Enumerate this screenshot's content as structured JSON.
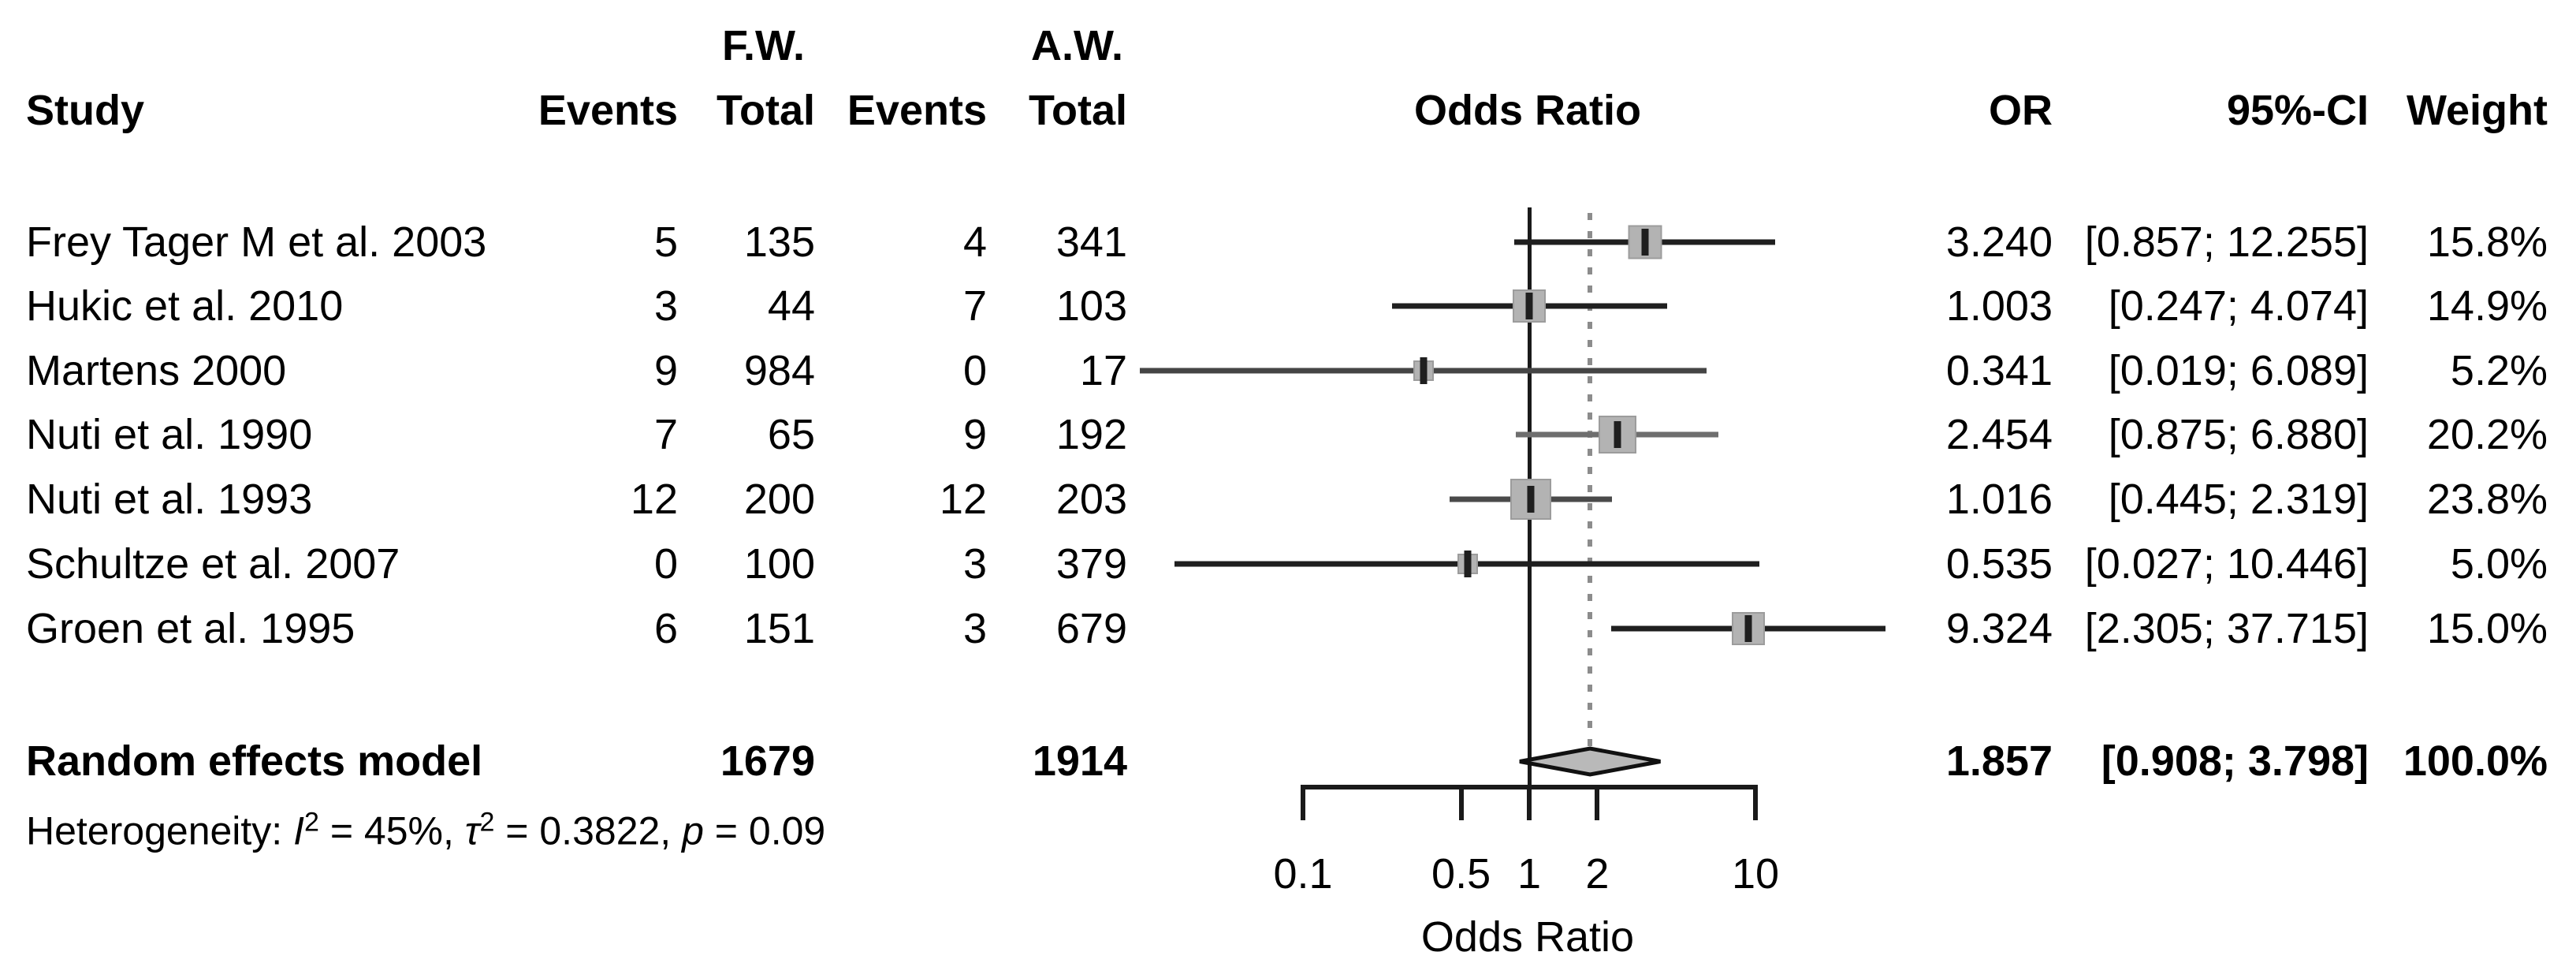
{
  "header": {
    "study": "Study",
    "fw_group": "F.W.",
    "aw_group": "A.W.",
    "events1": "Events",
    "total1": "Total",
    "events2": "Events",
    "total2": "Total",
    "plot_title": "Odds Ratio",
    "or": "OR",
    "ci": "95%-CI",
    "weight": "Weight"
  },
  "colors": {
    "ci_line": "#1a1a1a",
    "square_fill": "#b3b3b3",
    "square_edge": "#9c9c9c",
    "marker": "#1f1f1f",
    "diamond_fill": "#b9b9b9",
    "diamond_edge": "#111111",
    "dotted_line": "#8c8c8c",
    "axis": "#1a1a1a",
    "ref_line": "#1a1a1a"
  },
  "heterogeneity": {
    "prefix": "Heterogeneity: ",
    "i_symbol": "I",
    "i_exp": "2",
    "i_eq": " = 45%, ",
    "tau_symbol": "τ",
    "tau_exp": "2",
    "tau_eq": " = 0.3822, ",
    "p_symbol": "p",
    "p_eq": " = 0.09"
  },
  "chart_data": {
    "type": "forest",
    "effect_measure": "Odds Ratio",
    "x_scale": "log10",
    "axis": {
      "label": "Odds Ratio",
      "ticks": [
        {
          "v": 0.1,
          "label": "0.1"
        },
        {
          "v": 0.5,
          "label": "0.5"
        },
        {
          "v": 1,
          "label": "1"
        },
        {
          "v": 2,
          "label": "2"
        },
        {
          "v": 10,
          "label": "10"
        }
      ],
      "ref_line": 1,
      "dashed_line": 1.857
    },
    "studies": [
      {
        "study": "Frey Tager M et al. 2003",
        "fw_events": "5",
        "fw_total": "135",
        "aw_events": "4",
        "aw_total": "341",
        "or": 3.24,
        "ci_lower": 0.857,
        "ci_upper": 12.255,
        "weight": 15.8,
        "or_text": "3.240",
        "ci_text": "[0.857; 12.255]",
        "weight_text": "15.8%",
        "line_color": "#1f1f1f"
      },
      {
        "study": "Hukic et al. 2010",
        "fw_events": "3",
        "fw_total": "44",
        "aw_events": "7",
        "aw_total": "103",
        "or": 1.003,
        "ci_lower": 0.247,
        "ci_upper": 4.074,
        "weight": 14.9,
        "or_text": "1.003",
        "ci_text": "[0.247; 4.074]",
        "weight_text": "14.9%",
        "line_color": "#1f1f1f"
      },
      {
        "study": "Martens 2000",
        "fw_events": "9",
        "fw_total": "984",
        "aw_events": "0",
        "aw_total": "17",
        "or": 0.341,
        "ci_lower": 0.019,
        "ci_upper": 6.089,
        "weight": 5.2,
        "or_text": "0.341",
        "ci_text": "[0.019; 6.089]",
        "weight_text": "5.2%",
        "line_color": "#454545"
      },
      {
        "study": "Nuti et al. 1990",
        "fw_events": "7",
        "fw_total": "65",
        "aw_events": "9",
        "aw_total": "192",
        "or": 2.454,
        "ci_lower": 0.875,
        "ci_upper": 6.88,
        "weight": 20.2,
        "or_text": "2.454",
        "ci_text": "[0.875; 6.880]",
        "weight_text": "20.2%",
        "line_color": "#6e6e6e"
      },
      {
        "study": "Nuti et al. 1993",
        "fw_events": "12",
        "fw_total": "200",
        "aw_events": "12",
        "aw_total": "203",
        "or": 1.016,
        "ci_lower": 0.445,
        "ci_upper": 2.319,
        "weight": 23.8,
        "or_text": "1.016",
        "ci_text": "[0.445; 2.319]",
        "weight_text": "23.8%",
        "line_color": "#4a4a4a"
      },
      {
        "study": "Schultze et al. 2007",
        "fw_events": "0",
        "fw_total": "100",
        "aw_events": "3",
        "aw_total": "379",
        "or": 0.535,
        "ci_lower": 0.027,
        "ci_upper": 10.446,
        "weight": 5.0,
        "or_text": "0.535",
        "ci_text": "[0.027; 10.446]",
        "weight_text": "5.0%",
        "line_color": "#1f1f1f"
      },
      {
        "study": "Groen et al. 1995",
        "fw_events": "6",
        "fw_total": "151",
        "aw_events": "3",
        "aw_total": "679",
        "or": 9.324,
        "ci_lower": 2.305,
        "ci_upper": 37.715,
        "weight": 15.0,
        "or_text": "9.324",
        "ci_text": "[2.305; 37.715]",
        "weight_text": "15.0%",
        "line_color": "#1f1f1f"
      }
    ],
    "summary": {
      "label": "Random effects model",
      "fw_total": "1679",
      "aw_total": "1914",
      "or": 1.857,
      "ci_lower": 0.908,
      "ci_upper": 3.798,
      "or_text": "1.857",
      "ci_text": "[0.908;  3.798]",
      "weight_text": "100.0%"
    },
    "heterogeneity": {
      "I2": "45%",
      "tau2": "0.3822",
      "p": "0.09"
    }
  }
}
